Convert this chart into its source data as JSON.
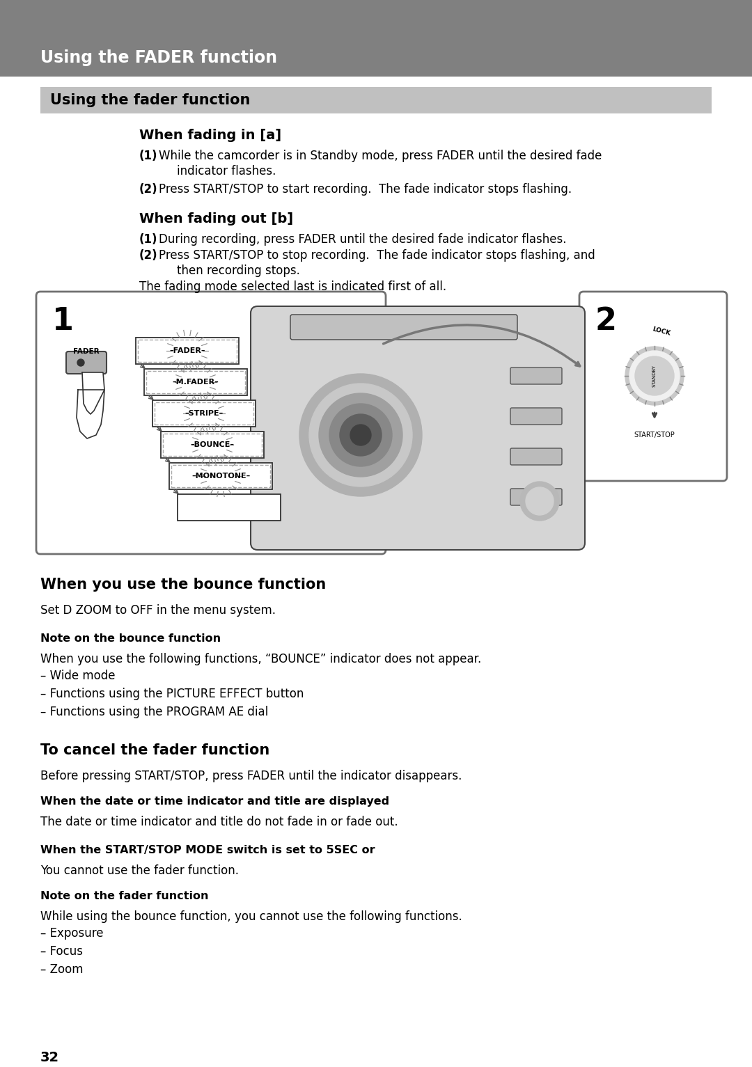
{
  "page_bg": "#ffffff",
  "header_bg": "#808080",
  "header_text": "Using the FADER function",
  "header_text_color": "#ffffff",
  "subheader_bg": "#c0c0c0",
  "subheader_text": "Using the fader function",
  "subheader_text_color": "#000000",
  "section1_title": "When fading in [a]",
  "section1_item1_bold": "(1)",
  "section1_item1_text": " While the camcorder is in Standby mode, press FADER until the desired fade\n      indicator flashes.",
  "section1_item2_bold": "(2)",
  "section1_item2_text": " Press START/STOP to start recording.  The fade indicator stops flashing.",
  "section2_title": "When fading out [b]",
  "section2_item1_bold": "(1)",
  "section2_item1_text": " During recording, press FADER until the desired fade indicator flashes.",
  "section2_item2_bold": "(2)",
  "section2_item2_text": " Press START/STOP to stop recording.  The fade indicator stops flashing, and\n      then recording stops.",
  "section2_note": "The fading mode selected last is indicated first of all.",
  "section3_title": "When you use the bounce function",
  "section3_body": "Set D ZOOM to OFF in the menu system.",
  "note_bounce_title": "Note on the bounce function",
  "note_bounce_body": "When you use the following functions, “BOUNCE” indicator does not appear.",
  "note_bounce_items": [
    "– Wide mode",
    "– Functions using the PICTURE EFFECT button",
    "– Functions using the PROGRAM AE dial"
  ],
  "section4_title": "To cancel the fader function",
  "section4_body": "Before pressing START/STOP, press FADER until the indicator disappears.",
  "note_date_title": "When the date or time indicator and title are displayed",
  "note_date_body": "The date or time indicator and title do not fade in or fade out.",
  "note_switch_title": "When the START/STOP MODE switch is set to 5SEC or",
  "note_switch_symbol": " —",
  "note_switch_body": "You cannot use the fader function.",
  "note_fader_title": "Note on the fader function",
  "note_fader_body": "While using the bounce function, you cannot use the following functions.",
  "note_fader_items": [
    "– Exposure",
    "– Focus",
    "– Zoom"
  ],
  "page_number": "32",
  "menu_labels": [
    "FADER",
    "M.FADER",
    "STRIPE",
    "BOUNCE",
    "MONOTONE",
    ""
  ]
}
